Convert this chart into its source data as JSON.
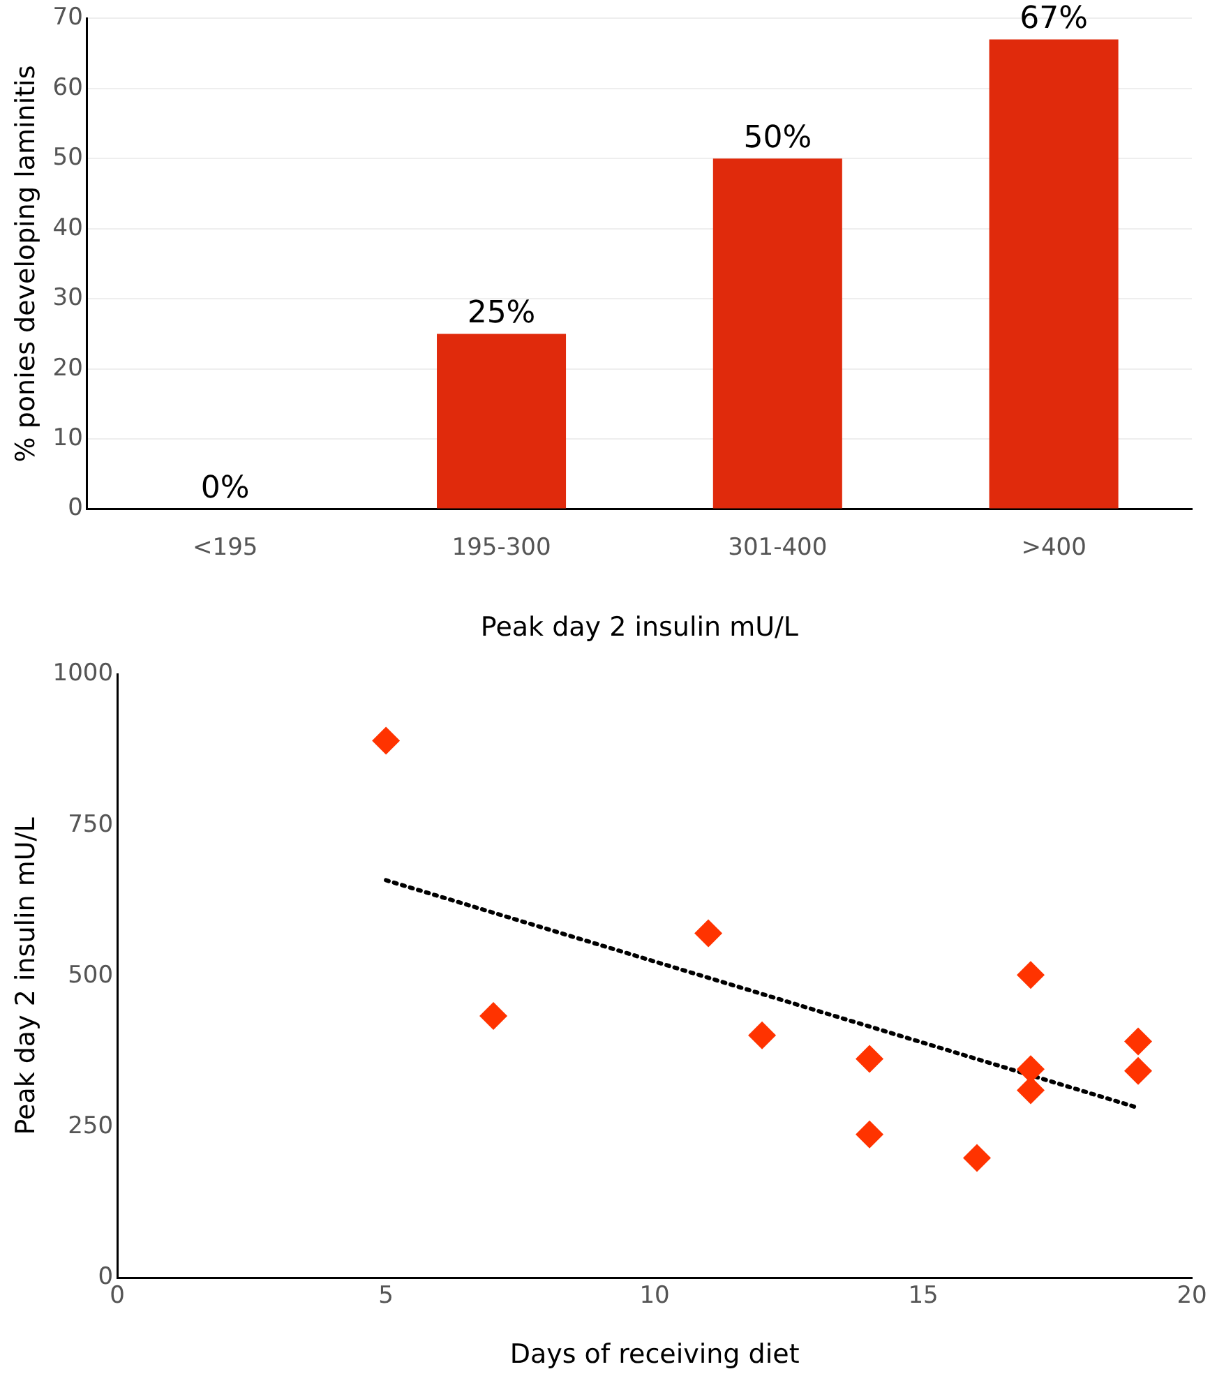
{
  "chart_data": [
    {
      "type": "bar",
      "xlabel": "Peak day 2 insulin mU/L",
      "ylabel": "% ponies developing laminitis",
      "categories": [
        "<195",
        "195-300",
        "301-400",
        ">400"
      ],
      "values": [
        0,
        25,
        50,
        67
      ],
      "value_labels": [
        "0%",
        "25%",
        "50%",
        "67%"
      ],
      "color": "#e02a0c",
      "ylim": [
        0,
        70
      ],
      "yticks": [
        0,
        10,
        20,
        30,
        40,
        50,
        60,
        70
      ],
      "grid": "y",
      "legend": false
    },
    {
      "type": "scatter",
      "xlabel": "Days of receiving diet",
      "ylabel": "Peak day 2 insulin mU/L",
      "xlim": [
        0,
        20
      ],
      "xticks": [
        0,
        5,
        10,
        15,
        20
      ],
      "ylim": [
        0,
        1000
      ],
      "yticks": [
        0,
        250,
        500,
        750,
        1000
      ],
      "grid": false,
      "legend": false,
      "series": [
        {
          "type": "scatter",
          "color": "#ff3300",
          "marker": "diamond",
          "x": [
            5,
            7,
            11,
            12,
            14,
            14,
            16,
            17,
            17,
            17,
            19,
            19
          ],
          "values": [
            890,
            434,
            571,
            402,
            363,
            238,
            199,
            502,
            346,
            311,
            392,
            343
          ]
        },
        {
          "type": "line",
          "color": "#000000",
          "line_style": "dotted",
          "marker": "none",
          "x": [
            5,
            19
          ],
          "values": [
            659,
            282
          ]
        }
      ]
    }
  ]
}
